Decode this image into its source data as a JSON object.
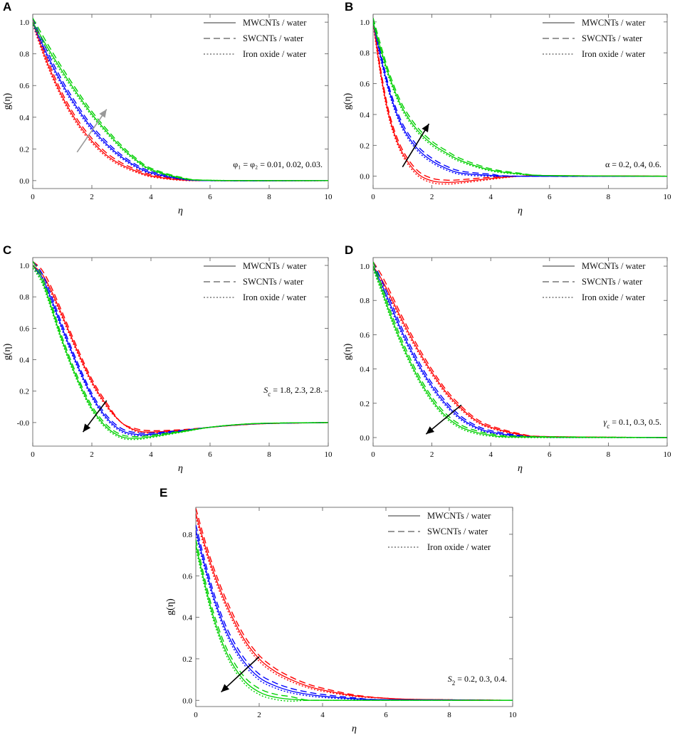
{
  "legend": {
    "entries": [
      {
        "label": "MWCNTs / water",
        "style": "solid"
      },
      {
        "label": "SWCNTs / water",
        "style": "dashed"
      },
      {
        "label": "Iron oxide / water",
        "style": "dotted"
      }
    ]
  },
  "series_colors": [
    "#ff0000",
    "#0000ff",
    "#00d000"
  ],
  "chart_data": [
    {
      "panel": "A",
      "type": "line",
      "xlabel": "η",
      "ylabel": "g(η)",
      "xlim": [
        0,
        10
      ],
      "ylim": [
        -0.05,
        1.05
      ],
      "xticks": [
        "0",
        "2",
        "4",
        "6",
        "8",
        "10"
      ],
      "yticks": [
        "0.0",
        "0.2",
        "0.4",
        "0.6",
        "0.8",
        "1.0"
      ],
      "annotation": "φ₁ = φ₂ = 0.01, 0.02, 0.03.",
      "arrow": {
        "direction": "up",
        "x1": 1.5,
        "y1": 0.18,
        "x2": 2.5,
        "y2": 0.45,
        "color": "#999999"
      },
      "series": [
        {
          "name": "0.01",
          "color": "#ff0000",
          "points": [
            [
              0,
              1.0
            ],
            [
              0.5,
              0.74
            ],
            [
              1,
              0.53
            ],
            [
              1.5,
              0.37
            ],
            [
              2,
              0.25
            ],
            [
              2.5,
              0.16
            ],
            [
              3,
              0.1
            ],
            [
              3.5,
              0.06
            ],
            [
              4,
              0.03
            ],
            [
              5,
              0.005
            ],
            [
              6,
              0.0
            ],
            [
              10,
              0.0
            ]
          ]
        },
        {
          "name": "0.02",
          "color": "#0000ff",
          "points": [
            [
              0,
              1.0
            ],
            [
              0.5,
              0.79
            ],
            [
              1,
              0.61
            ],
            [
              1.5,
              0.46
            ],
            [
              2,
              0.33
            ],
            [
              2.5,
              0.23
            ],
            [
              3,
              0.15
            ],
            [
              3.5,
              0.09
            ],
            [
              4,
              0.05
            ],
            [
              5,
              0.012
            ],
            [
              6,
              0.0
            ],
            [
              10,
              0.0
            ]
          ]
        },
        {
          "name": "0.03",
          "color": "#00d000",
          "points": [
            [
              0,
              1.0
            ],
            [
              0.5,
              0.84
            ],
            [
              1,
              0.69
            ],
            [
              1.5,
              0.55
            ],
            [
              2,
              0.42
            ],
            [
              2.5,
              0.31
            ],
            [
              3,
              0.21
            ],
            [
              3.5,
              0.13
            ],
            [
              4,
              0.07
            ],
            [
              5,
              0.018
            ],
            [
              6,
              0.002
            ],
            [
              10,
              0.0
            ]
          ]
        }
      ]
    },
    {
      "panel": "B",
      "type": "line",
      "xlabel": "η",
      "ylabel": "g(η)",
      "xlim": [
        0,
        10
      ],
      "ylim": [
        -0.08,
        1.05
      ],
      "xticks": [
        "0",
        "2",
        "4",
        "6",
        "8",
        "10"
      ],
      "yticks": [
        "0.0",
        "0.2",
        "0.4",
        "0.6",
        "0.8",
        "1.0"
      ],
      "annotation": "α = 0.2, 0.4, 0.6.",
      "arrow": {
        "direction": "up",
        "x1": 1.0,
        "y1": 0.06,
        "x2": 1.9,
        "y2": 0.34,
        "color": "#000000"
      },
      "series": [
        {
          "name": "0.2",
          "color": "#ff0000",
          "points": [
            [
              0,
              1.0
            ],
            [
              0.3,
              0.62
            ],
            [
              0.6,
              0.35
            ],
            [
              1,
              0.15
            ],
            [
              1.5,
              0.02
            ],
            [
              2,
              -0.03
            ],
            [
              2.5,
              -0.04
            ],
            [
              3,
              -0.035
            ],
            [
              4,
              -0.015
            ],
            [
              5,
              0.0
            ],
            [
              6,
              0.003
            ],
            [
              10,
              0.0
            ]
          ]
        },
        {
          "name": "0.4",
          "color": "#0000ff",
          "points": [
            [
              0,
              1.0
            ],
            [
              0.3,
              0.74
            ],
            [
              0.6,
              0.52
            ],
            [
              1,
              0.32
            ],
            [
              1.5,
              0.18
            ],
            [
              2,
              0.1
            ],
            [
              2.5,
              0.05
            ],
            [
              3,
              0.02
            ],
            [
              4,
              0.005
            ],
            [
              5,
              0.0
            ],
            [
              10,
              0.0
            ]
          ]
        },
        {
          "name": "0.6",
          "color": "#00d000",
          "points": [
            [
              0,
              1.0
            ],
            [
              0.3,
              0.8
            ],
            [
              0.6,
              0.62
            ],
            [
              1,
              0.44
            ],
            [
              1.5,
              0.3
            ],
            [
              2,
              0.21
            ],
            [
              2.5,
              0.15
            ],
            [
              3,
              0.1
            ],
            [
              4,
              0.04
            ],
            [
              5,
              0.015
            ],
            [
              6,
              0.004
            ],
            [
              10,
              0.0
            ]
          ]
        }
      ]
    },
    {
      "panel": "C",
      "type": "line",
      "xlabel": "η",
      "ylabel": "g(η)",
      "xlim": [
        0,
        10
      ],
      "ylim": [
        -0.15,
        1.05
      ],
      "xticks": [
        "0",
        "2",
        "4",
        "6",
        "8",
        "10"
      ],
      "yticks": [
        "-0.0",
        "0.2",
        "0.4",
        "0.6",
        "0.8",
        "1.0"
      ],
      "annotation": "Sc = 1.8, 2.3, 2.8.",
      "arrow": {
        "direction": "down",
        "x1": 2.5,
        "y1": 0.14,
        "x2": 1.7,
        "y2": -0.06,
        "color": "#000000"
      },
      "series": [
        {
          "name": "1.8",
          "color": "#ff0000",
          "points": [
            [
              0,
              1.0
            ],
            [
              0.3,
              0.95
            ],
            [
              0.6,
              0.85
            ],
            [
              1,
              0.68
            ],
            [
              1.5,
              0.46
            ],
            [
              2,
              0.26
            ],
            [
              2.5,
              0.11
            ],
            [
              3,
              0.0
            ],
            [
              3.5,
              -0.05
            ],
            [
              4,
              -0.06
            ],
            [
              5,
              -0.05
            ],
            [
              6,
              -0.03
            ],
            [
              7,
              -0.015
            ],
            [
              8,
              -0.006
            ],
            [
              10,
              0.0
            ]
          ]
        },
        {
          "name": "2.3",
          "color": "#0000ff",
          "points": [
            [
              0,
              1.0
            ],
            [
              0.3,
              0.93
            ],
            [
              0.6,
              0.8
            ],
            [
              1,
              0.6
            ],
            [
              1.5,
              0.37
            ],
            [
              2,
              0.17
            ],
            [
              2.5,
              0.03
            ],
            [
              3,
              -0.05
            ],
            [
              3.5,
              -0.075
            ],
            [
              4,
              -0.075
            ],
            [
              5,
              -0.055
            ],
            [
              6,
              -0.03
            ],
            [
              7,
              -0.013
            ],
            [
              8,
              -0.005
            ],
            [
              10,
              0.0
            ]
          ]
        },
        {
          "name": "2.8",
          "color": "#00d000",
          "points": [
            [
              0,
              1.0
            ],
            [
              0.3,
              0.91
            ],
            [
              0.6,
              0.75
            ],
            [
              1,
              0.52
            ],
            [
              1.5,
              0.28
            ],
            [
              2,
              0.09
            ],
            [
              2.5,
              -0.03
            ],
            [
              3,
              -0.09
            ],
            [
              3.5,
              -0.1
            ],
            [
              4,
              -0.09
            ],
            [
              5,
              -0.06
            ],
            [
              6,
              -0.03
            ],
            [
              7,
              -0.012
            ],
            [
              8,
              -0.004
            ],
            [
              10,
              0.0
            ]
          ]
        }
      ]
    },
    {
      "panel": "D",
      "type": "line",
      "xlabel": "η",
      "ylabel": "g(η)",
      "xlim": [
        0,
        10
      ],
      "ylim": [
        -0.05,
        1.05
      ],
      "xticks": [
        "0",
        "2",
        "4",
        "6",
        "8",
        "10"
      ],
      "yticks": [
        "0.0",
        "0.2",
        "0.4",
        "0.6",
        "0.8",
        "1.0"
      ],
      "annotation": "γc = 0.1, 0.3, 0.5.",
      "arrow": {
        "direction": "down",
        "x1": 3.0,
        "y1": 0.19,
        "x2": 1.8,
        "y2": 0.02,
        "color": "#000000"
      },
      "series": [
        {
          "name": "0.1",
          "color": "#ff0000",
          "points": [
            [
              0,
              1.0
            ],
            [
              0.3,
              0.92
            ],
            [
              0.6,
              0.82
            ],
            [
              1,
              0.68
            ],
            [
              1.5,
              0.52
            ],
            [
              2,
              0.38
            ],
            [
              2.5,
              0.26
            ],
            [
              3,
              0.17
            ],
            [
              3.5,
              0.1
            ],
            [
              4,
              0.06
            ],
            [
              5,
              0.018
            ],
            [
              6,
              0.005
            ],
            [
              10,
              0.0
            ]
          ]
        },
        {
          "name": "0.3",
          "color": "#0000ff",
          "points": [
            [
              0,
              1.0
            ],
            [
              0.3,
              0.89
            ],
            [
              0.6,
              0.77
            ],
            [
              1,
              0.61
            ],
            [
              1.5,
              0.44
            ],
            [
              2,
              0.3
            ],
            [
              2.5,
              0.19
            ],
            [
              3,
              0.11
            ],
            [
              3.5,
              0.06
            ],
            [
              4,
              0.032
            ],
            [
              5,
              0.008
            ],
            [
              6,
              0.002
            ],
            [
              10,
              0.0
            ]
          ]
        },
        {
          "name": "0.5",
          "color": "#00d000",
          "points": [
            [
              0,
              1.0
            ],
            [
              0.3,
              0.86
            ],
            [
              0.6,
              0.71
            ],
            [
              1,
              0.54
            ],
            [
              1.5,
              0.36
            ],
            [
              2,
              0.22
            ],
            [
              2.5,
              0.12
            ],
            [
              3,
              0.06
            ],
            [
              3.5,
              0.03
            ],
            [
              4,
              0.014
            ],
            [
              5,
              0.003
            ],
            [
              10,
              0.0
            ]
          ]
        }
      ]
    },
    {
      "panel": "E",
      "type": "line",
      "xlabel": "η",
      "ylabel": "g(η)",
      "xlim": [
        0,
        10
      ],
      "ylim": [
        -0.03,
        0.93
      ],
      "xticks": [
        "0",
        "2",
        "4",
        "6",
        "8",
        "10"
      ],
      "yticks": [
        "0.0",
        "0.2",
        "0.4",
        "0.6",
        "0.8"
      ],
      "annotation": "S2 = 0.2, 0.3, 0.4.",
      "arrow": {
        "direction": "down",
        "x1": 2.0,
        "y1": 0.21,
        "x2": 0.8,
        "y2": 0.04,
        "color": "#000000"
      },
      "series": [
        {
          "name": "0.2",
          "color": "#ff0000",
          "points": [
            [
              0,
              0.9
            ],
            [
              0.3,
              0.74
            ],
            [
              0.6,
              0.6
            ],
            [
              1,
              0.45
            ],
            [
              1.5,
              0.3
            ],
            [
              2,
              0.2
            ],
            [
              2.5,
              0.14
            ],
            [
              3,
              0.1
            ],
            [
              3.5,
              0.07
            ],
            [
              4,
              0.05
            ],
            [
              5,
              0.022
            ],
            [
              6,
              0.01
            ],
            [
              7,
              0.004
            ],
            [
              10,
              0.0
            ]
          ]
        },
        {
          "name": "0.3",
          "color": "#0000ff",
          "points": [
            [
              0,
              0.82
            ],
            [
              0.3,
              0.64
            ],
            [
              0.6,
              0.48
            ],
            [
              1,
              0.32
            ],
            [
              1.5,
              0.19
            ],
            [
              2,
              0.11
            ],
            [
              2.5,
              0.07
            ],
            [
              3,
              0.045
            ],
            [
              3.5,
              0.03
            ],
            [
              4,
              0.02
            ],
            [
              5,
              0.008
            ],
            [
              6,
              0.003
            ],
            [
              10,
              0.0
            ]
          ]
        },
        {
          "name": "0.4",
          "color": "#00d000",
          "points": [
            [
              0,
              0.75
            ],
            [
              0.3,
              0.55
            ],
            [
              0.6,
              0.38
            ],
            [
              1,
              0.22
            ],
            [
              1.5,
              0.1
            ],
            [
              2,
              0.04
            ],
            [
              2.5,
              0.015
            ],
            [
              3,
              0.005
            ],
            [
              3.5,
              0.001
            ],
            [
              4,
              0.0
            ],
            [
              10,
              0.0
            ]
          ]
        }
      ]
    }
  ]
}
